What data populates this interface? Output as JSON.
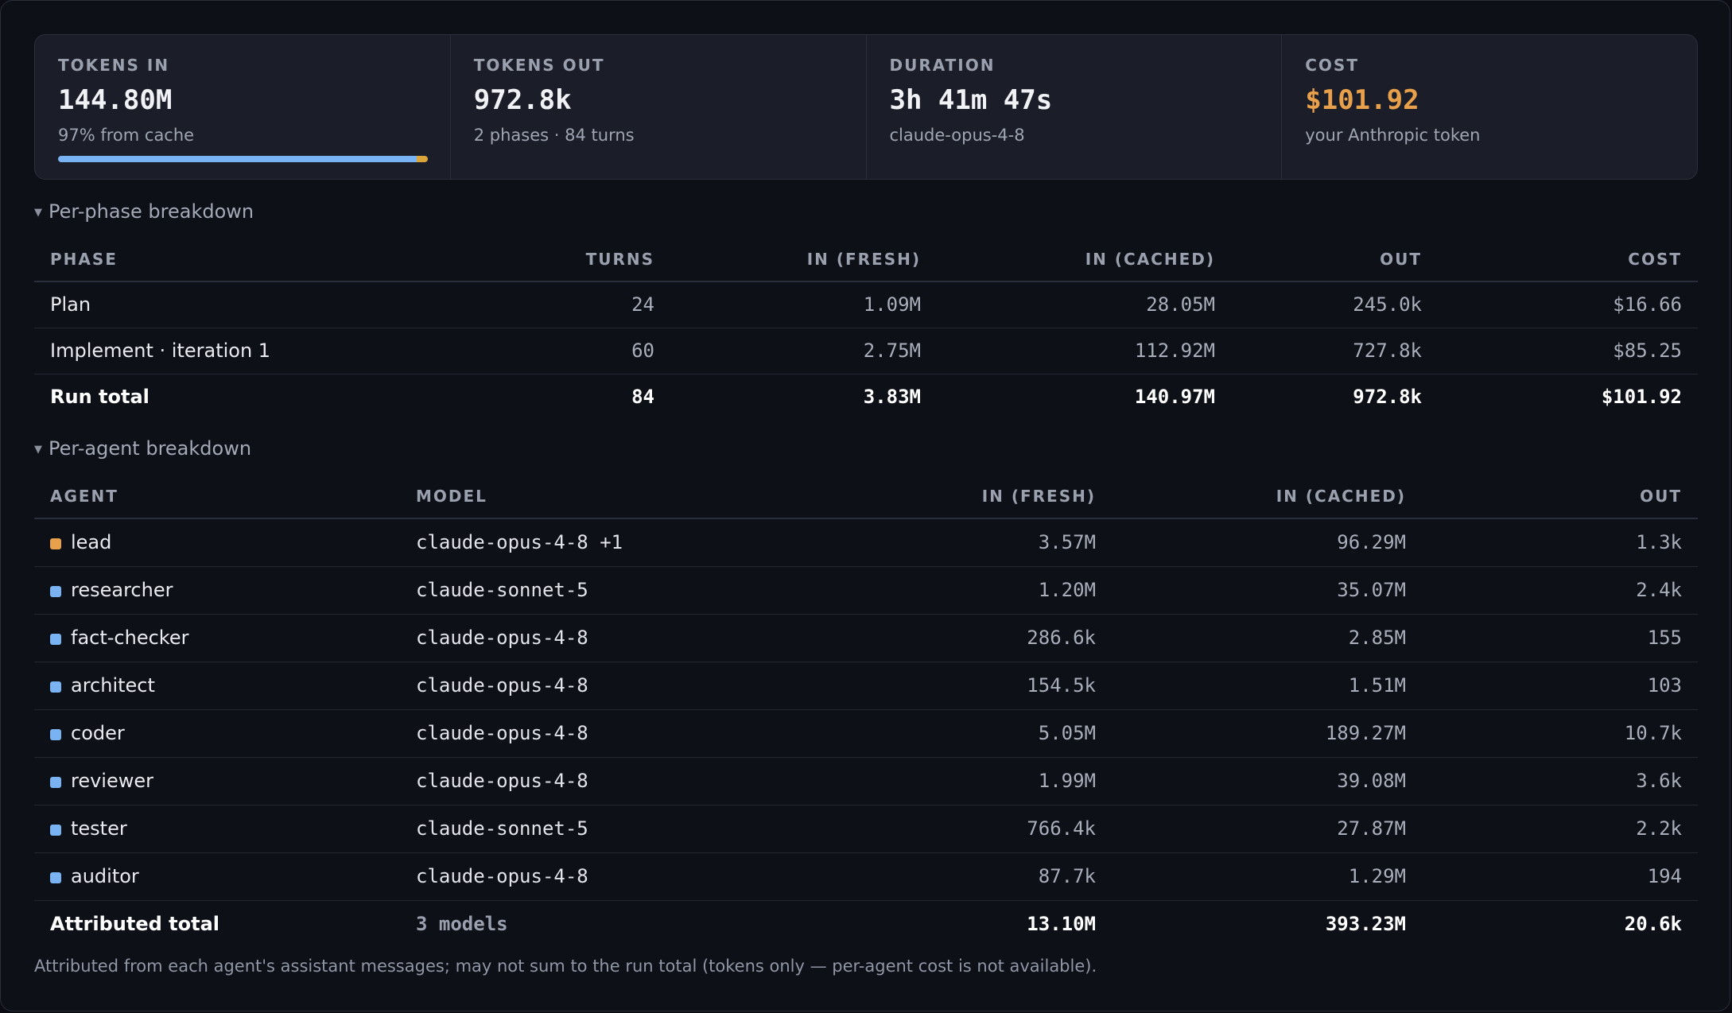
{
  "stats": [
    {
      "label": "TOKENS IN",
      "value": "144.80M",
      "sub": "97% from cache",
      "progress": 0.97
    },
    {
      "label": "TOKENS OUT",
      "value": "972.8k",
      "sub": "2 phases · 84 turns"
    },
    {
      "label": "DURATION",
      "value": "3h 41m 47s",
      "sub": "claude-opus-4-8"
    },
    {
      "label": "COST",
      "value": "$101.92",
      "sub": "your Anthropic token"
    }
  ],
  "colors": {
    "accent_cost": "#e8a04b",
    "bar_main": "#7ab3f3",
    "bar_rest": "#d9a53c",
    "agent_lead": "#e8a04b",
    "agent_default": "#7ab3f3"
  },
  "phase_section": {
    "title": "Per-phase breakdown",
    "headers": [
      "PHASE",
      "TURNS",
      "IN (FRESH)",
      "IN (CACHED)",
      "OUT",
      "COST"
    ],
    "rows": [
      {
        "phase": "Plan",
        "turns": "24",
        "in_fresh": "1.09M",
        "in_cached": "28.05M",
        "out": "245.0k",
        "cost": "$16.66"
      },
      {
        "phase": "Implement · iteration 1",
        "turns": "60",
        "in_fresh": "2.75M",
        "in_cached": "112.92M",
        "out": "727.8k",
        "cost": "$85.25"
      }
    ],
    "total": {
      "phase": "Run total",
      "turns": "84",
      "in_fresh": "3.83M",
      "in_cached": "140.97M",
      "out": "972.8k",
      "cost": "$101.92"
    }
  },
  "agent_section": {
    "title": "Per-agent breakdown",
    "headers": [
      "AGENT",
      "MODEL",
      "IN (FRESH)",
      "IN (CACHED)",
      "OUT"
    ],
    "rows": [
      {
        "agent": "lead",
        "model": "claude-opus-4-8 +1",
        "in_fresh": "3.57M",
        "in_cached": "96.29M",
        "out": "1.3k",
        "color": "#e8a04b"
      },
      {
        "agent": "researcher",
        "model": "claude-sonnet-5",
        "in_fresh": "1.20M",
        "in_cached": "35.07M",
        "out": "2.4k",
        "color": "#7ab3f3"
      },
      {
        "agent": "fact-checker",
        "model": "claude-opus-4-8",
        "in_fresh": "286.6k",
        "in_cached": "2.85M",
        "out": "155",
        "color": "#7ab3f3"
      },
      {
        "agent": "architect",
        "model": "claude-opus-4-8",
        "in_fresh": "154.5k",
        "in_cached": "1.51M",
        "out": "103",
        "color": "#7ab3f3"
      },
      {
        "agent": "coder",
        "model": "claude-opus-4-8",
        "in_fresh": "5.05M",
        "in_cached": "189.27M",
        "out": "10.7k",
        "color": "#7ab3f3"
      },
      {
        "agent": "reviewer",
        "model": "claude-opus-4-8",
        "in_fresh": "1.99M",
        "in_cached": "39.08M",
        "out": "3.6k",
        "color": "#7ab3f3"
      },
      {
        "agent": "tester",
        "model": "claude-sonnet-5",
        "in_fresh": "766.4k",
        "in_cached": "27.87M",
        "out": "2.2k",
        "color": "#7ab3f3"
      },
      {
        "agent": "auditor",
        "model": "claude-opus-4-8",
        "in_fresh": "87.7k",
        "in_cached": "1.29M",
        "out": "194",
        "color": "#7ab3f3"
      }
    ],
    "total": {
      "agent": "Attributed total",
      "model": "3 models",
      "in_fresh": "13.10M",
      "in_cached": "393.23M",
      "out": "20.6k"
    }
  },
  "footnote": "Attributed from each agent's assistant messages; may not sum to the run total (tokens only — per-agent cost is not available)."
}
